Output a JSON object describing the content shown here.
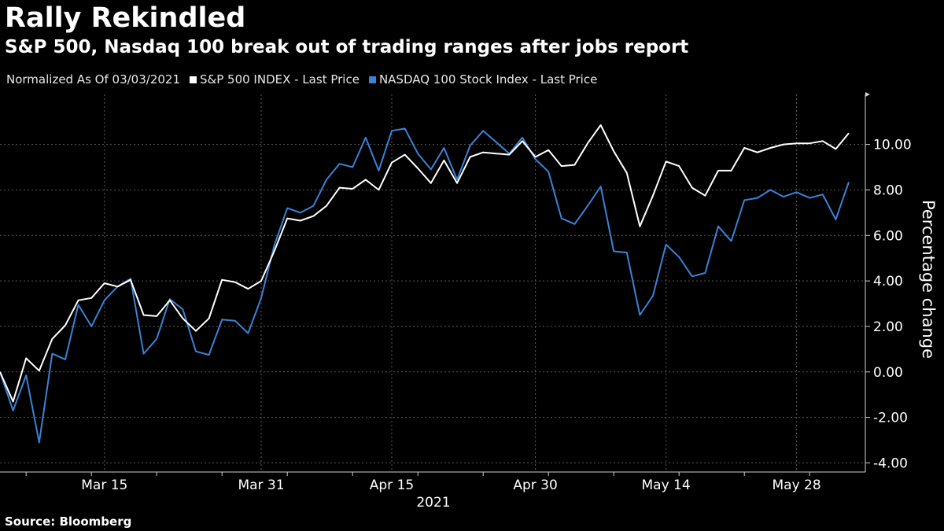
{
  "header": {
    "title": "Rally Rekindled",
    "subtitle": "S&P 500, Nasdaq 100 break out of trading ranges after jobs report"
  },
  "legend": {
    "note": "Normalized As Of 03/03/2021",
    "items": [
      {
        "label": "S&P 500 INDEX - Last Price",
        "color": "#ffffff"
      },
      {
        "label": "NASDAQ 100 Stock Index - Last Price",
        "color": "#3b82d6"
      }
    ]
  },
  "footer": {
    "source": "Source: Bloomberg"
  },
  "chart_data": {
    "type": "line",
    "title": "Rally Rekindled",
    "subtitle": "S&P 500, Nasdaq 100 break out of trading ranges after jobs report",
    "ylabel": "Percentage change",
    "xlabel": "2021",
    "ylim": [
      -4.4,
      12.2
    ],
    "yticks": [
      -4,
      -2,
      0,
      2,
      4,
      6,
      8,
      10
    ],
    "ytick_labels": [
      "-4.00",
      "-2.00",
      "0.00",
      "2.00",
      "4.00",
      "6.00",
      "8.00",
      "10.00"
    ],
    "x_ticks": [
      {
        "index": 8,
        "label": "Mar 15"
      },
      {
        "index": 20,
        "label": "Mar 31"
      },
      {
        "index": 30,
        "label": "Apr 15"
      },
      {
        "index": 41,
        "label": "Apr 30"
      },
      {
        "index": 51,
        "label": "May 14"
      },
      {
        "index": 61,
        "label": "May 28"
      }
    ],
    "grid": true,
    "legend_position": "top-left",
    "x": [
      "2021-03-03",
      "2021-03-04",
      "2021-03-05",
      "2021-03-08",
      "2021-03-09",
      "2021-03-10",
      "2021-03-11",
      "2021-03-12",
      "2021-03-15",
      "2021-03-16",
      "2021-03-17",
      "2021-03-18",
      "2021-03-19",
      "2021-03-22",
      "2021-03-23",
      "2021-03-24",
      "2021-03-25",
      "2021-03-26",
      "2021-03-29",
      "2021-03-30",
      "2021-03-31",
      "2021-04-01",
      "2021-04-05",
      "2021-04-06",
      "2021-04-07",
      "2021-04-08",
      "2021-04-09",
      "2021-04-12",
      "2021-04-13",
      "2021-04-14",
      "2021-04-15",
      "2021-04-16",
      "2021-04-19",
      "2021-04-20",
      "2021-04-21",
      "2021-04-22",
      "2021-04-23",
      "2021-04-26",
      "2021-04-27",
      "2021-04-28",
      "2021-04-29",
      "2021-04-30",
      "2021-05-03",
      "2021-05-04",
      "2021-05-05",
      "2021-05-06",
      "2021-05-07",
      "2021-05-10",
      "2021-05-11",
      "2021-05-12",
      "2021-05-13",
      "2021-05-14",
      "2021-05-17",
      "2021-05-18",
      "2021-05-19",
      "2021-05-20",
      "2021-05-21",
      "2021-05-24",
      "2021-05-25",
      "2021-05-26",
      "2021-05-27",
      "2021-05-28",
      "2021-06-01",
      "2021-06-02",
      "2021-06-03",
      "2021-06-04"
    ],
    "series": [
      {
        "name": "S&P 500 INDEX - Last Price",
        "color": "#ffffff",
        "values": [
          0.0,
          -1.3,
          0.6,
          0.05,
          1.45,
          2.05,
          3.15,
          3.25,
          3.9,
          3.75,
          4.05,
          2.5,
          2.45,
          3.15,
          2.35,
          1.8,
          2.35,
          4.05,
          3.95,
          3.65,
          4.0,
          5.3,
          6.75,
          6.65,
          6.85,
          7.3,
          8.1,
          8.05,
          8.45,
          8.0,
          9.2,
          9.55,
          8.95,
          8.3,
          9.3,
          8.3,
          9.45,
          9.65,
          9.6,
          9.55,
          10.15,
          9.45,
          9.75,
          9.05,
          9.1,
          10.05,
          10.85,
          9.7,
          8.75,
          6.4,
          7.75,
          9.25,
          9.05,
          8.1,
          7.75,
          8.85,
          8.85,
          9.85,
          9.65,
          9.85,
          10.0,
          10.05,
          10.05,
          10.15,
          9.8,
          10.5
        ]
      },
      {
        "name": "NASDAQ 100 Stock Index - Last Price",
        "color": "#3b82d6",
        "values": [
          0.0,
          -1.7,
          -0.15,
          -3.1,
          0.8,
          0.55,
          2.95,
          2.0,
          3.15,
          3.75,
          4.1,
          0.8,
          1.45,
          3.2,
          2.75,
          0.9,
          0.75,
          2.3,
          2.25,
          1.7,
          3.25,
          5.55,
          7.2,
          7.0,
          7.3,
          8.45,
          9.15,
          9.0,
          10.3,
          8.85,
          10.6,
          10.7,
          9.6,
          8.9,
          9.85,
          8.45,
          9.95,
          10.6,
          10.1,
          9.6,
          10.3,
          9.35,
          8.8,
          6.75,
          6.5,
          7.3,
          8.15,
          5.3,
          5.25,
          2.5,
          3.35,
          5.6,
          5.05,
          4.2,
          4.35,
          6.4,
          5.75,
          7.55,
          7.65,
          8.0,
          7.7,
          7.9,
          7.65,
          7.8,
          6.7,
          8.35
        ]
      }
    ]
  }
}
